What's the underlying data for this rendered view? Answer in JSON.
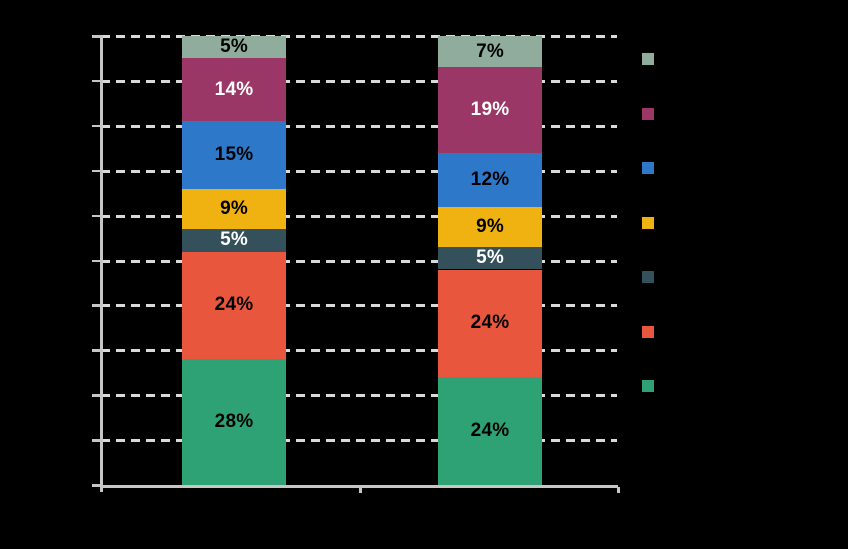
{
  "chart_data": {
    "type": "bar",
    "stacked": true,
    "title": "",
    "xlabel": "",
    "ylabel": "",
    "categories": [
      "",
      ""
    ],
    "ylim": [
      0,
      100
    ],
    "grid_step": 10,
    "grid_style": "dashed-horizontal",
    "legend_position": "right",
    "series": [
      {
        "name": "green-segment",
        "color": "#2EA274",
        "label_color": "#000000",
        "values": [
          28,
          24
        ],
        "labels": [
          "28%",
          "24%"
        ]
      },
      {
        "name": "red-segment",
        "color": "#E8573D",
        "label_color": "#000000",
        "values": [
          24,
          24
        ],
        "labels": [
          "24%",
          "24%"
        ]
      },
      {
        "name": "slate-segment",
        "color": "#34505A",
        "label_color": "#FFFFFF",
        "values": [
          5,
          5
        ],
        "labels": [
          "5%",
          "5%"
        ]
      },
      {
        "name": "yellow-segment",
        "color": "#EFB211",
        "label_color": "#000000",
        "values": [
          9,
          9
        ],
        "labels": [
          "9%",
          "9%"
        ]
      },
      {
        "name": "blue-segment",
        "color": "#2E78CA",
        "label_color": "#000000",
        "values": [
          15,
          12
        ],
        "labels": [
          "15%",
          "12%"
        ]
      },
      {
        "name": "purple-segment",
        "color": "#9A3766",
        "label_color": "#FFFFFF",
        "values": [
          14,
          19
        ],
        "labels": [
          "14%",
          "19%"
        ]
      },
      {
        "name": "sage-segment",
        "color": "#8FAC9C",
        "label_color": "#000000",
        "values": [
          5,
          7
        ],
        "labels": [
          "5%",
          "7%"
        ]
      }
    ],
    "legend_swatch_colors": [
      "#8FAC9C",
      "#9A3766",
      "#2E78CA",
      "#EFB211",
      "#34505A",
      "#E8573D",
      "#2EA274"
    ]
  },
  "style": {
    "background": "#000000",
    "axis_color": "#C6C6C6",
    "grid_color": "#D9D9D9"
  }
}
